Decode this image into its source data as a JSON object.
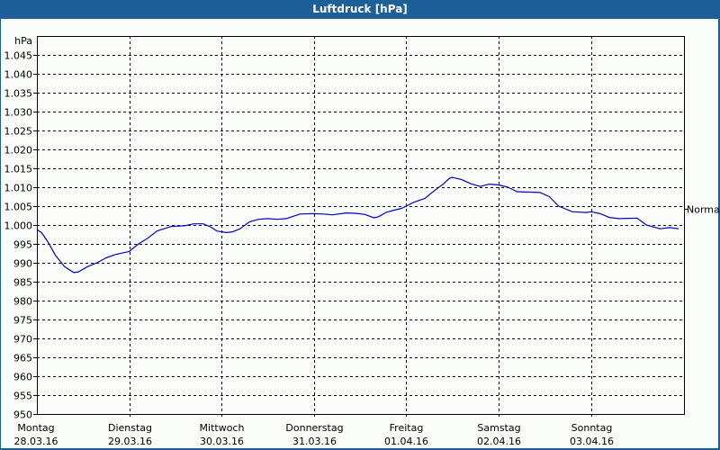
{
  "window": {
    "title": "Luftdruck [hPa]",
    "titlebar_color": "#1d5f97"
  },
  "chart_data": {
    "type": "line",
    "title": "Luftdruck [hPa]",
    "xlabel": "",
    "ylabel": "hPa",
    "ylim": [
      950,
      1050
    ],
    "y_ticks": [
      950,
      955,
      960,
      965,
      970,
      975,
      980,
      985,
      990,
      995,
      1000,
      1005,
      1010,
      1015,
      1020,
      1025,
      1030,
      1035,
      1040,
      1045
    ],
    "y_tick_labels": [
      "950",
      "955",
      "960",
      "965",
      "970",
      "975",
      "980",
      "985",
      "990",
      "995",
      "1.000",
      "1.005",
      "1.010",
      "1.015",
      "1.020",
      "1.025",
      "1.030",
      "1.035",
      "1.040",
      "1.045"
    ],
    "x_ticks": [
      {
        "day": "Montag",
        "date": "28.03.16"
      },
      {
        "day": "Dienstag",
        "date": "29.03.16"
      },
      {
        "day": "Mittwoch",
        "date": "30.03.16"
      },
      {
        "day": "Donnerstag",
        "date": "31.03.16"
      },
      {
        "day": "Freitag",
        "date": "01.04.16"
      },
      {
        "day": "Samstag",
        "date": "02.04.16"
      },
      {
        "day": "Sonntag",
        "date": "03.04.16"
      }
    ],
    "xlim_days": [
      0,
      7
    ],
    "grid": true,
    "annotations": [
      {
        "label": "Normal",
        "y": 1004.3,
        "position": "right"
      }
    ],
    "series": [
      {
        "name": "Luftdruck",
        "color": "#0000c0",
        "x_days": [
          0.0,
          0.05,
          0.12,
          0.2,
          0.3,
          0.4,
          0.45,
          0.55,
          0.65,
          0.75,
          0.85,
          1.0,
          1.1,
          1.2,
          1.3,
          1.45,
          1.6,
          1.7,
          1.8,
          1.88,
          1.95,
          2.05,
          2.12,
          2.2,
          2.3,
          2.4,
          2.5,
          2.6,
          2.7,
          2.85,
          3.0,
          3.1,
          3.2,
          3.35,
          3.45,
          3.55,
          3.65,
          3.7,
          3.78,
          3.85,
          3.95,
          4.0,
          4.08,
          4.2,
          4.3,
          4.4,
          4.47,
          4.5,
          4.6,
          4.7,
          4.8,
          4.9,
          5.0,
          5.1,
          5.2,
          5.45,
          5.55,
          5.65,
          5.8,
          5.95,
          6.0,
          6.1,
          6.2,
          6.3,
          6.5,
          6.6,
          6.75,
          6.85,
          6.95
        ],
        "values": [
          998.8,
          998.0,
          995.5,
          992.0,
          989.0,
          987.4,
          987.6,
          989.0,
          990.0,
          991.3,
          992.2,
          993.0,
          995.0,
          996.5,
          998.4,
          999.6,
          999.8,
          1000.3,
          1000.3,
          999.5,
          998.4,
          998.0,
          998.2,
          999.0,
          1000.8,
          1001.5,
          1001.7,
          1001.5,
          1001.7,
          1002.9,
          1003.0,
          1002.9,
          1002.7,
          1003.2,
          1003.1,
          1002.8,
          1001.9,
          1002.2,
          1003.3,
          1003.8,
          1004.4,
          1005.0,
          1006.0,
          1007.0,
          1009.0,
          1010.8,
          1012.4,
          1012.6,
          1012.0,
          1010.9,
          1010.2,
          1010.8,
          1010.6,
          1010.0,
          1008.8,
          1008.6,
          1007.5,
          1005.0,
          1003.5,
          1003.3,
          1003.5,
          1003.0,
          1002.0,
          1001.7,
          1001.8,
          1000.0,
          999.0,
          999.3,
          999.0
        ]
      }
    ]
  }
}
